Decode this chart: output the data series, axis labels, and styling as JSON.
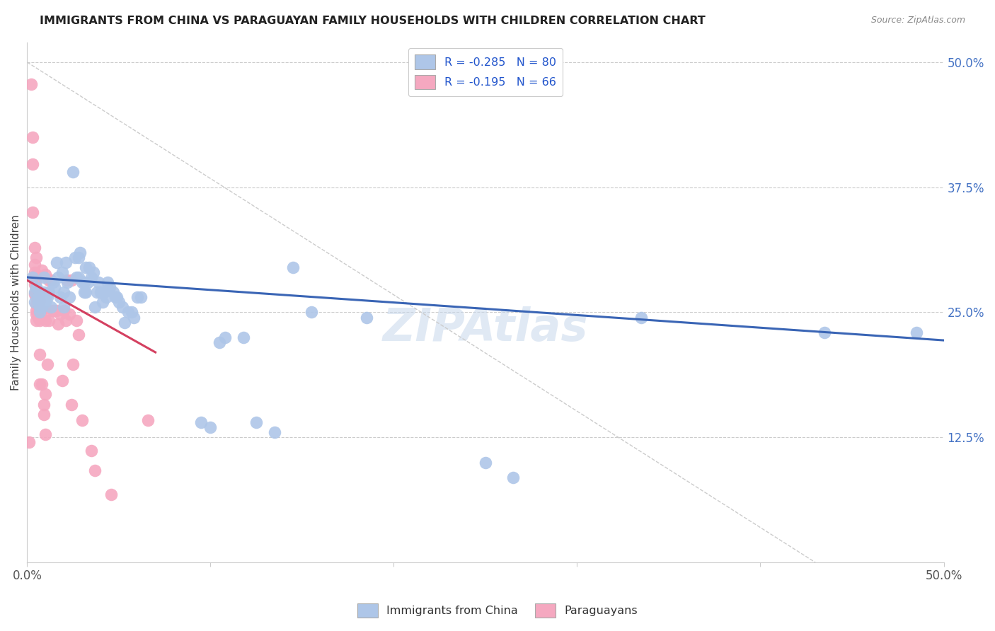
{
  "title": "IMMIGRANTS FROM CHINA VS PARAGUAYAN FAMILY HOUSEHOLDS WITH CHILDREN CORRELATION CHART",
  "source": "Source: ZipAtlas.com",
  "ylabel": "Family Households with Children",
  "right_ytick_labels": [
    "50.0%",
    "37.5%",
    "25.0%",
    "12.5%"
  ],
  "right_ytick_positions": [
    0.5,
    0.375,
    0.25,
    0.125
  ],
  "legend_r1": "-0.285",
  "legend_n1": "80",
  "legend_r2": "-0.195",
  "legend_n2": "66",
  "legend_label1": "Immigrants from China",
  "legend_label2": "Paraguayans",
  "xlim": [
    0.0,
    0.5
  ],
  "ylim": [
    0.0,
    0.52
  ],
  "blue_color": "#aec6e8",
  "pink_color": "#f5a8c0",
  "blue_line_color": "#3a65b5",
  "pink_line_color": "#d44060",
  "right_tick_color": "#4472c4",
  "watermark": "ZIPAtlas",
  "blue_scatter": [
    [
      0.003,
      0.285
    ],
    [
      0.004,
      0.27
    ],
    [
      0.004,
      0.26
    ],
    [
      0.005,
      0.275
    ],
    [
      0.005,
      0.275
    ],
    [
      0.006,
      0.265
    ],
    [
      0.006,
      0.26
    ],
    [
      0.007,
      0.255
    ],
    [
      0.007,
      0.27
    ],
    [
      0.007,
      0.25
    ],
    [
      0.008,
      0.26
    ],
    [
      0.008,
      0.255
    ],
    [
      0.009,
      0.27
    ],
    [
      0.009,
      0.285
    ],
    [
      0.01,
      0.265
    ],
    [
      0.01,
      0.26
    ],
    [
      0.011,
      0.265
    ],
    [
      0.012,
      0.27
    ],
    [
      0.013,
      0.255
    ],
    [
      0.014,
      0.28
    ],
    [
      0.015,
      0.275
    ],
    [
      0.016,
      0.3
    ],
    [
      0.017,
      0.285
    ],
    [
      0.018,
      0.265
    ],
    [
      0.019,
      0.29
    ],
    [
      0.02,
      0.27
    ],
    [
      0.02,
      0.255
    ],
    [
      0.021,
      0.3
    ],
    [
      0.022,
      0.28
    ],
    [
      0.023,
      0.265
    ],
    [
      0.025,
      0.39
    ],
    [
      0.026,
      0.305
    ],
    [
      0.027,
      0.285
    ],
    [
      0.028,
      0.305
    ],
    [
      0.028,
      0.285
    ],
    [
      0.029,
      0.31
    ],
    [
      0.03,
      0.28
    ],
    [
      0.031,
      0.27
    ],
    [
      0.031,
      0.28
    ],
    [
      0.032,
      0.295
    ],
    [
      0.032,
      0.27
    ],
    [
      0.033,
      0.28
    ],
    [
      0.034,
      0.295
    ],
    [
      0.035,
      0.285
    ],
    [
      0.036,
      0.29
    ],
    [
      0.037,
      0.255
    ],
    [
      0.038,
      0.27
    ],
    [
      0.039,
      0.28
    ],
    [
      0.04,
      0.27
    ],
    [
      0.041,
      0.26
    ],
    [
      0.042,
      0.27
    ],
    [
      0.043,
      0.265
    ],
    [
      0.044,
      0.28
    ],
    [
      0.045,
      0.275
    ],
    [
      0.047,
      0.27
    ],
    [
      0.048,
      0.265
    ],
    [
      0.049,
      0.265
    ],
    [
      0.05,
      0.26
    ],
    [
      0.052,
      0.255
    ],
    [
      0.053,
      0.24
    ],
    [
      0.055,
      0.25
    ],
    [
      0.057,
      0.25
    ],
    [
      0.058,
      0.245
    ],
    [
      0.06,
      0.265
    ],
    [
      0.062,
      0.265
    ],
    [
      0.095,
      0.14
    ],
    [
      0.1,
      0.135
    ],
    [
      0.105,
      0.22
    ],
    [
      0.108,
      0.225
    ],
    [
      0.118,
      0.225
    ],
    [
      0.125,
      0.14
    ],
    [
      0.135,
      0.13
    ],
    [
      0.145,
      0.295
    ],
    [
      0.155,
      0.25
    ],
    [
      0.185,
      0.245
    ],
    [
      0.25,
      0.1
    ],
    [
      0.265,
      0.085
    ],
    [
      0.335,
      0.245
    ],
    [
      0.435,
      0.23
    ],
    [
      0.485,
      0.23
    ]
  ],
  "pink_scatter": [
    [
      0.001,
      0.12
    ],
    [
      0.002,
      0.478
    ],
    [
      0.003,
      0.425
    ],
    [
      0.003,
      0.398
    ],
    [
      0.003,
      0.35
    ],
    [
      0.004,
      0.315
    ],
    [
      0.004,
      0.298
    ],
    [
      0.004,
      0.29
    ],
    [
      0.004,
      0.282
    ],
    [
      0.004,
      0.278
    ],
    [
      0.004,
      0.268
    ],
    [
      0.005,
      0.305
    ],
    [
      0.005,
      0.288
    ],
    [
      0.005,
      0.282
    ],
    [
      0.005,
      0.275
    ],
    [
      0.005,
      0.27
    ],
    [
      0.005,
      0.265
    ],
    [
      0.005,
      0.258
    ],
    [
      0.005,
      0.252
    ],
    [
      0.005,
      0.248
    ],
    [
      0.005,
      0.242
    ],
    [
      0.006,
      0.262
    ],
    [
      0.006,
      0.26
    ],
    [
      0.006,
      0.255
    ],
    [
      0.006,
      0.25
    ],
    [
      0.006,
      0.245
    ],
    [
      0.007,
      0.268
    ],
    [
      0.007,
      0.262
    ],
    [
      0.007,
      0.252
    ],
    [
      0.007,
      0.242
    ],
    [
      0.007,
      0.208
    ],
    [
      0.007,
      0.178
    ],
    [
      0.008,
      0.292
    ],
    [
      0.008,
      0.252
    ],
    [
      0.008,
      0.178
    ],
    [
      0.009,
      0.158
    ],
    [
      0.009,
      0.148
    ],
    [
      0.01,
      0.288
    ],
    [
      0.01,
      0.242
    ],
    [
      0.01,
      0.168
    ],
    [
      0.01,
      0.128
    ],
    [
      0.011,
      0.198
    ],
    [
      0.012,
      0.282
    ],
    [
      0.012,
      0.242
    ],
    [
      0.013,
      0.282
    ],
    [
      0.013,
      0.252
    ],
    [
      0.014,
      0.252
    ],
    [
      0.015,
      0.252
    ],
    [
      0.016,
      0.252
    ],
    [
      0.017,
      0.238
    ],
    [
      0.018,
      0.248
    ],
    [
      0.019,
      0.182
    ],
    [
      0.02,
      0.252
    ],
    [
      0.021,
      0.242
    ],
    [
      0.022,
      0.282
    ],
    [
      0.023,
      0.248
    ],
    [
      0.024,
      0.282
    ],
    [
      0.024,
      0.158
    ],
    [
      0.025,
      0.198
    ],
    [
      0.027,
      0.242
    ],
    [
      0.028,
      0.228
    ],
    [
      0.03,
      0.142
    ],
    [
      0.035,
      0.112
    ],
    [
      0.037,
      0.092
    ],
    [
      0.046,
      0.068
    ],
    [
      0.066,
      0.142
    ]
  ],
  "blue_trend": [
    0.0,
    0.285,
    0.5,
    0.222
  ],
  "pink_trend": [
    0.0,
    0.282,
    0.07,
    0.21
  ],
  "dashed_line": [
    0.0,
    0.5,
    0.43,
    0.0
  ]
}
